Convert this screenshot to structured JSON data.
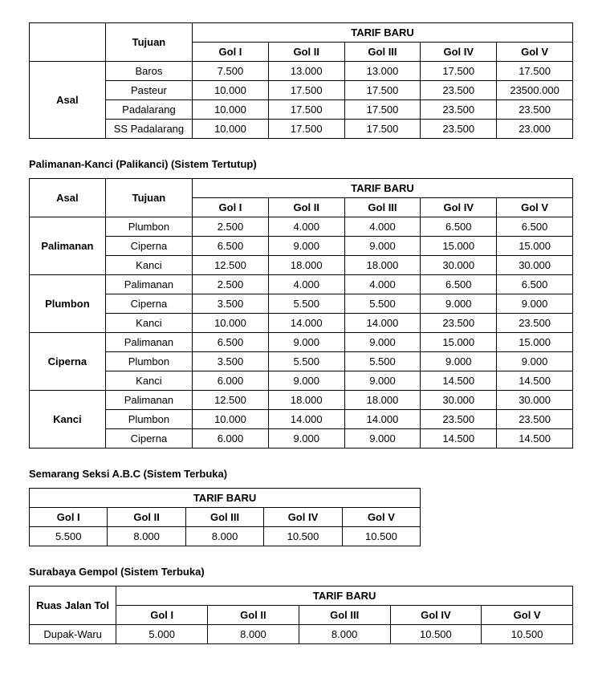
{
  "labels": {
    "asal": "Asal",
    "tujuan": "Tujuan",
    "tarif_baru": "TARIF BARU",
    "ruas_jalan_tol": "Ruas Jalan Tol",
    "gol_headers": [
      "Gol I",
      "Gol II",
      "Gol III",
      "Gol IV",
      "Gol V"
    ]
  },
  "table1": {
    "rows": [
      {
        "tujuan": "Baros",
        "vals": [
          "7.500",
          "13.000",
          "13.000",
          "17.500",
          "17.500"
        ]
      },
      {
        "tujuan": "Pasteur",
        "vals": [
          "10.000",
          "17.500",
          "17.500",
          "23.500",
          "23500.000"
        ]
      },
      {
        "tujuan": "Padalarang",
        "vals": [
          "10.000",
          "17.500",
          "17.500",
          "23.500",
          "23.500"
        ]
      },
      {
        "tujuan": "SS Padalarang",
        "vals": [
          "10.000",
          "17.500",
          "17.500",
          "23.500",
          "23.000"
        ]
      }
    ]
  },
  "section2": {
    "title": "Palimanan-Kanci (Palikanci) (Sistem Tertutup)"
  },
  "table2": {
    "groups": [
      {
        "asal": "Palimanan",
        "rows": [
          {
            "tujuan": "Plumbon",
            "vals": [
              "2.500",
              "4.000",
              "4.000",
              "6.500",
              "6.500"
            ]
          },
          {
            "tujuan": "Ciperna",
            "vals": [
              "6.500",
              "9.000",
              "9.000",
              "15.000",
              "15.000"
            ]
          },
          {
            "tujuan": "Kanci",
            "vals": [
              "12.500",
              "18.000",
              "18.000",
              "30.000",
              "30.000"
            ]
          }
        ]
      },
      {
        "asal": "Plumbon",
        "rows": [
          {
            "tujuan": "Palimanan",
            "vals": [
              "2.500",
              "4.000",
              "4.000",
              "6.500",
              "6.500"
            ]
          },
          {
            "tujuan": "Ciperna",
            "vals": [
              "3.500",
              "5.500",
              "5.500",
              "9.000",
              "9.000"
            ]
          },
          {
            "tujuan": "Kanci",
            "vals": [
              "10.000",
              "14.000",
              "14.000",
              "23.500",
              "23.500"
            ]
          }
        ]
      },
      {
        "asal": "Ciperna",
        "rows": [
          {
            "tujuan": "Palimanan",
            "vals": [
              "6.500",
              "9.000",
              "9.000",
              "15.000",
              "15.000"
            ]
          },
          {
            "tujuan": "Plumbon",
            "vals": [
              "3.500",
              "5.500",
              "5.500",
              "9.000",
              "9.000"
            ]
          },
          {
            "tujuan": "Kanci",
            "vals": [
              "6.000",
              "9.000",
              "9.000",
              "14.500",
              "14.500"
            ]
          }
        ]
      },
      {
        "asal": "Kanci",
        "rows": [
          {
            "tujuan": "Palimanan",
            "vals": [
              "12.500",
              "18.000",
              "18.000",
              "30.000",
              "30.000"
            ]
          },
          {
            "tujuan": "Plumbon",
            "vals": [
              "10.000",
              "14.000",
              "14.000",
              "23.500",
              "23.500"
            ]
          },
          {
            "tujuan": "Ciperna",
            "vals": [
              "6.000",
              "9.000",
              "9.000",
              "14.500",
              "14.500"
            ]
          }
        ]
      }
    ]
  },
  "section3": {
    "title": "Semarang Seksi A.B.C (Sistem Terbuka)"
  },
  "table3": {
    "row": [
      "5.500",
      "8.000",
      "8.000",
      "10.500",
      "10.500"
    ]
  },
  "section4": {
    "title": "Surabaya Gempol (Sistem Terbuka)"
  },
  "table4": {
    "ruas": "Dupak-Waru",
    "row": [
      "5.000",
      "8.000",
      "8.000",
      "10.500",
      "10.500"
    ]
  }
}
